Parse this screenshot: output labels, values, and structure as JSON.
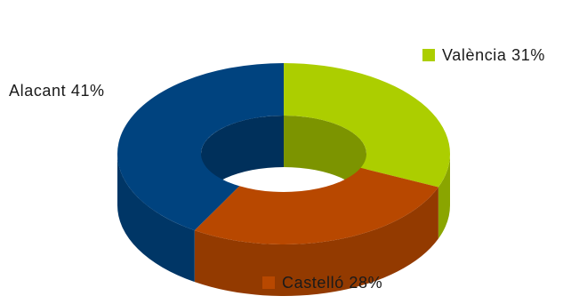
{
  "chart_data": {
    "type": "pie",
    "style": "3d-doughnut",
    "title": "",
    "categories": [
      "València",
      "Castelló",
      "Alacant"
    ],
    "values": [
      31,
      28,
      41
    ],
    "colors": [
      "#acce00",
      "#b84800",
      "#00437f"
    ],
    "labels": [
      "València 31%",
      "Castelló 28%",
      "Alacant 41%"
    ],
    "legend": "inline"
  }
}
